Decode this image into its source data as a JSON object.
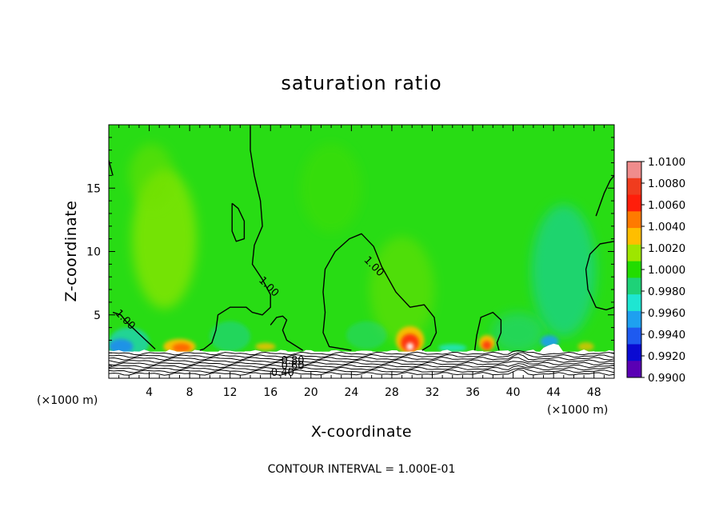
{
  "chart_data": {
    "type": "heatmap",
    "title": "saturation ratio",
    "xlabel": "X-coordinate",
    "ylabel": "Z-coordinate",
    "x_unit_left": "(×1000 m)",
    "x_unit_right": "(×1000 m)",
    "xlim": [
      0,
      50
    ],
    "ylim": [
      0,
      20
    ],
    "xticks": [
      4,
      8,
      12,
      16,
      20,
      24,
      28,
      32,
      36,
      40,
      44,
      48
    ],
    "yticks": [
      5,
      10,
      15
    ],
    "colorbar": {
      "levels": [
        "1.0100",
        "1.0080",
        "1.0060",
        "1.0040",
        "1.0020",
        "1.0000",
        "0.9980",
        "0.9960",
        "0.9940",
        "0.9920",
        "0.9900"
      ],
      "colors": [
        "#f08c8c",
        "#f03c1e",
        "#ff1e0a",
        "#ff7a00",
        "#ffbe00",
        "#9ee600",
        "#22dc00",
        "#1ed278",
        "#1ee6d2",
        "#1ea0f0",
        "#1e5af0",
        "#0a0ad2",
        "#5a00b4"
      ]
    },
    "background_color": "#28dc14",
    "contour_labels": [
      {
        "text": "1.00",
        "x": 1.6,
        "z": 4.6
      },
      {
        "text": "1.00",
        "x": 15.8,
        "z": 7.2
      },
      {
        "text": "1.00",
        "x": 26.2,
        "z": 8.8
      },
      {
        "text": "0.80",
        "x": 18.2,
        "z": 1.35
      },
      {
        "text": "0.60",
        "x": 18.2,
        "z": 0.95
      },
      {
        "text": "0.40",
        "x": 17.2,
        "z": 0.4
      }
    ],
    "contour_lines": [
      {
        "value": 1.0,
        "points": [
          [
            0,
            17.2
          ],
          [
            0.2,
            16.6
          ],
          [
            0.4,
            16.0
          ]
        ]
      },
      {
        "value": 1.0,
        "points": [
          [
            0.4,
            5.2
          ],
          [
            1.2,
            5.0
          ],
          [
            1.8,
            4.4
          ],
          [
            3.0,
            3.5
          ],
          [
            4.2,
            2.6
          ],
          [
            4.6,
            2.3
          ]
        ]
      },
      {
        "value": 1.0,
        "points": [
          [
            14.0,
            19.9
          ],
          [
            14.0,
            18.0
          ],
          [
            14.4,
            16.0
          ],
          [
            15.0,
            14.0
          ],
          [
            15.2,
            12.0
          ],
          [
            14.4,
            10.5
          ],
          [
            14.2,
            9.0
          ],
          [
            15.2,
            7.8
          ],
          [
            16.0,
            6.6
          ],
          [
            16.0,
            5.6
          ],
          [
            15.2,
            5.0
          ],
          [
            14.2,
            5.2
          ],
          [
            13.6,
            5.6
          ],
          [
            12.0,
            5.6
          ],
          [
            10.8,
            5.0
          ],
          [
            10.6,
            3.8
          ],
          [
            10.2,
            2.8
          ],
          [
            9.4,
            2.3
          ],
          [
            9.0,
            2.2
          ]
        ]
      },
      {
        "value": 1.0,
        "points": [
          [
            12.2,
            13.8
          ],
          [
            12.8,
            13.4
          ],
          [
            13.4,
            12.4
          ],
          [
            13.4,
            11.0
          ],
          [
            12.6,
            10.8
          ],
          [
            12.2,
            11.6
          ],
          [
            12.2,
            13.8
          ]
        ]
      },
      {
        "value": 1.0,
        "points": [
          [
            19.2,
            2.2
          ],
          [
            17.6,
            3.0
          ],
          [
            17.2,
            3.8
          ],
          [
            17.6,
            4.6
          ],
          [
            17.2,
            4.9
          ],
          [
            16.6,
            4.8
          ],
          [
            16.0,
            4.2
          ]
        ]
      },
      {
        "value": 1.0,
        "points": [
          [
            24.0,
            2.2
          ],
          [
            21.8,
            2.5
          ],
          [
            21.2,
            3.6
          ],
          [
            21.4,
            5.2
          ],
          [
            21.2,
            6.8
          ],
          [
            21.4,
            8.6
          ],
          [
            22.4,
            10.0
          ],
          [
            23.8,
            11.0
          ],
          [
            25.0,
            11.4
          ],
          [
            26.2,
            10.4
          ],
          [
            27.0,
            8.8
          ],
          [
            28.4,
            6.8
          ],
          [
            29.8,
            5.6
          ],
          [
            31.2,
            5.8
          ],
          [
            32.2,
            4.8
          ],
          [
            32.4,
            3.6
          ],
          [
            31.8,
            2.6
          ],
          [
            31.0,
            2.2
          ]
        ]
      },
      {
        "value": 1.0,
        "points": [
          [
            36.2,
            2.2
          ],
          [
            36.4,
            3.4
          ],
          [
            36.8,
            4.8
          ],
          [
            38.0,
            5.2
          ],
          [
            38.8,
            4.6
          ],
          [
            38.8,
            3.6
          ],
          [
            38.4,
            2.8
          ],
          [
            38.6,
            2.2
          ]
        ]
      },
      {
        "value": 1.0,
        "points": [
          [
            48.2,
            12.8
          ],
          [
            49.0,
            14.6
          ],
          [
            49.6,
            15.6
          ],
          [
            50.0,
            16.0
          ]
        ]
      },
      {
        "value": 1.0,
        "points": [
          [
            50.0,
            10.8
          ],
          [
            48.6,
            10.6
          ],
          [
            47.6,
            9.8
          ],
          [
            47.2,
            8.6
          ],
          [
            47.4,
            7.0
          ],
          [
            48.2,
            5.6
          ],
          [
            49.2,
            5.4
          ],
          [
            50.0,
            5.6
          ]
        ]
      }
    ],
    "blobs": [
      {
        "x": 5.5,
        "z": 11.0,
        "rx": 3.2,
        "rz": 5.5,
        "color": "#8ee600",
        "opacity": 0.75
      },
      {
        "x": 4.2,
        "z": 16.0,
        "rx": 2.2,
        "rz": 2.5,
        "color": "#6ee00a",
        "opacity": 0.55
      },
      {
        "x": 29.0,
        "z": 7.0,
        "rx": 3.2,
        "rz": 4.2,
        "color": "#6ee00a",
        "opacity": 0.55
      },
      {
        "x": 22.0,
        "z": 15.0,
        "rx": 3.0,
        "rz": 3.5,
        "color": "#46de0e",
        "opacity": 0.45
      },
      {
        "x": 45.0,
        "z": 8.5,
        "rx": 3.2,
        "rz": 5.2,
        "color": "#1ed28c",
        "opacity": 0.75
      },
      {
        "x": 12.0,
        "z": 3.3,
        "rx": 2.0,
        "rz": 1.2,
        "color": "#1ed28c",
        "opacity": 0.6
      },
      {
        "x": 25.5,
        "z": 3.4,
        "rx": 2.0,
        "rz": 1.1,
        "color": "#1ed28c",
        "opacity": 0.45
      },
      {
        "x": 40.5,
        "z": 3.6,
        "rx": 2.6,
        "rz": 1.6,
        "color": "#1ed28c",
        "opacity": 0.55
      },
      {
        "x": 2.0,
        "z": 2.8,
        "rx": 2.0,
        "rz": 1.2,
        "color": "#1ed2b4",
        "opacity": 0.8
      },
      {
        "x": 1.2,
        "z": 2.5,
        "rx": 1.2,
        "rz": 0.6,
        "color": "#1e8cf0",
        "opacity": 0.9
      },
      {
        "x": 7.0,
        "z": 2.5,
        "rx": 1.6,
        "rz": 0.6,
        "color": "#ffbe00",
        "opacity": 0.95
      },
      {
        "x": 7.2,
        "z": 2.4,
        "rx": 0.9,
        "rz": 0.35,
        "color": "#ff6400",
        "opacity": 0.95
      },
      {
        "x": 29.8,
        "z": 3.0,
        "rx": 1.4,
        "rz": 1.1,
        "color": "#ffbe00",
        "opacity": 0.95
      },
      {
        "x": 29.8,
        "z": 2.8,
        "rx": 0.9,
        "rz": 0.7,
        "color": "#ff2a0a",
        "opacity": 0.95
      },
      {
        "x": 29.8,
        "z": 2.5,
        "rx": 0.35,
        "rz": 0.3,
        "color": "#ffffff",
        "opacity": 0.95
      },
      {
        "x": 37.4,
        "z": 2.8,
        "rx": 0.8,
        "rz": 0.6,
        "color": "#ffbe00",
        "opacity": 0.95
      },
      {
        "x": 37.4,
        "z": 2.6,
        "rx": 0.45,
        "rz": 0.35,
        "color": "#ff3c0a",
        "opacity": 0.95
      },
      {
        "x": 15.5,
        "z": 2.5,
        "rx": 1.0,
        "rz": 0.3,
        "color": "#ffbe00",
        "opacity": 0.8
      },
      {
        "x": 34.0,
        "z": 2.4,
        "rx": 1.4,
        "rz": 0.3,
        "color": "#1ee6d2",
        "opacity": 0.8
      },
      {
        "x": 43.6,
        "z": 2.9,
        "rx": 0.9,
        "rz": 0.5,
        "color": "#1ea0f0",
        "opacity": 0.9
      },
      {
        "x": 47.2,
        "z": 2.5,
        "rx": 0.8,
        "rz": 0.35,
        "color": "#ffbe00",
        "opacity": 0.7
      }
    ]
  },
  "footer": {
    "text": "CONTOUR INTERVAL = 1.000E-01"
  }
}
